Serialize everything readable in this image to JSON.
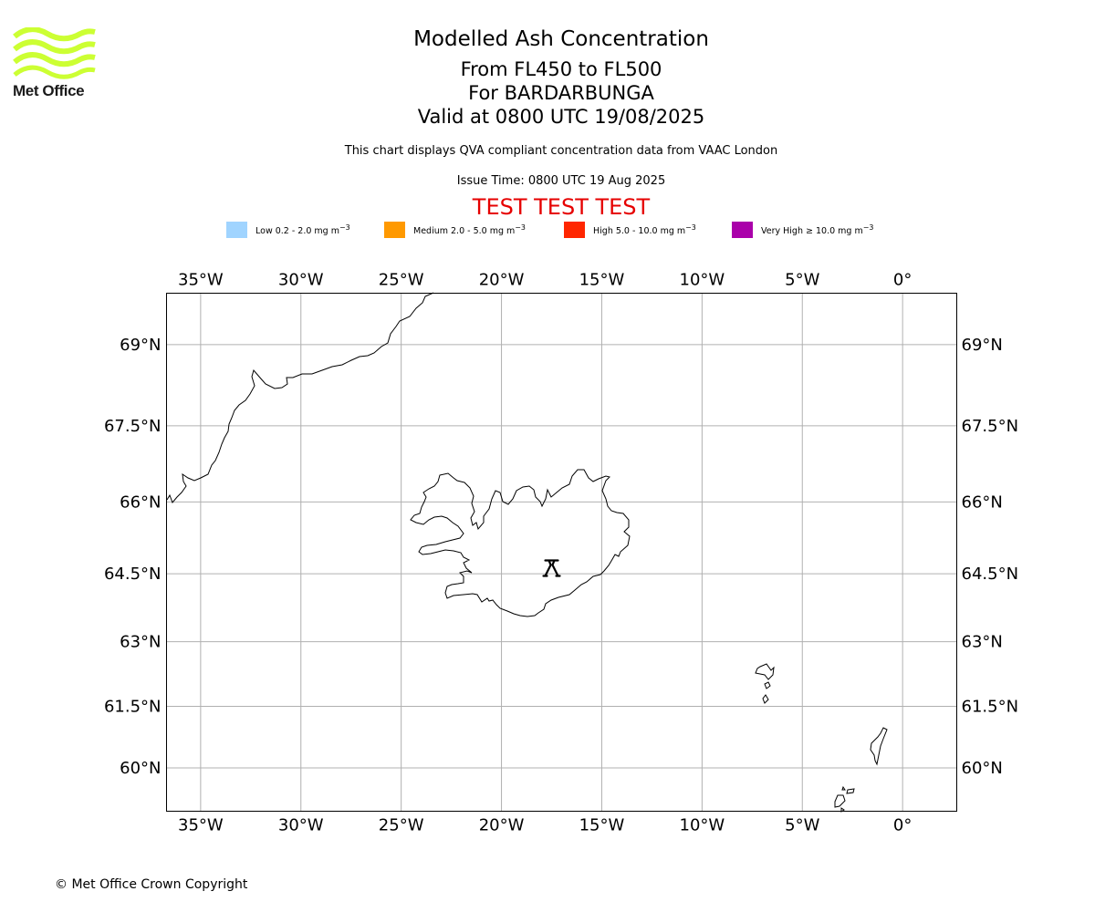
{
  "logo": {
    "text": "Met Office",
    "color": "#ccff33"
  },
  "title": {
    "main": "Modelled Ash Concentration",
    "flight_levels": "From FL450 to FL500",
    "volcano": "For BARDARBUNGA",
    "valid": "Valid at 0800 UTC 19/08/2025"
  },
  "note": "This chart displays QVA compliant concentration data from VAAC London",
  "issue_time": "Issue Time: 0800 UTC 19 Aug 2025",
  "test_banner": "TEST TEST TEST",
  "legend": [
    {
      "label": "Low 0.2 - 2.0 mg m",
      "color": "#a0d4ff"
    },
    {
      "label": "Medium 2.0 - 5.0 mg m",
      "color": "#ff9900"
    },
    {
      "label": "High 5.0 - 10.0 mg m",
      "color": "#ff2600"
    },
    {
      "label": "Very High ≥ 10.0 mg m",
      "color": "#aa00aa"
    }
  ],
  "legend_unit_exponent": "−3",
  "map": {
    "lon_range": [
      -36.7,
      2.7
    ],
    "lat_range": [
      58.9,
      69.9
    ],
    "lon_ticks": [
      {
        "value": -35,
        "label": "35°W"
      },
      {
        "value": -30,
        "label": "30°W"
      },
      {
        "value": -25,
        "label": "25°W"
      },
      {
        "value": -20,
        "label": "20°W"
      },
      {
        "value": -15,
        "label": "15°W"
      },
      {
        "value": -10,
        "label": "10°W"
      },
      {
        "value": -5,
        "label": "5°W"
      },
      {
        "value": 0,
        "label": "0°"
      }
    ],
    "lat_ticks": [
      {
        "value": 69,
        "label": "69°N"
      },
      {
        "value": 67.5,
        "label": "67.5°N"
      },
      {
        "value": 66,
        "label": "66°N"
      },
      {
        "value": 64.5,
        "label": "64.5°N"
      },
      {
        "value": 63,
        "label": "63°N"
      },
      {
        "value": 61.5,
        "label": "61.5°N"
      },
      {
        "value": 60,
        "label": "60°N"
      }
    ],
    "volcano": {
      "name": "BARDARBUNGA",
      "lon": -17.5,
      "lat": 64.63
    }
  },
  "copyright": "© Met Office Crown Copyright"
}
